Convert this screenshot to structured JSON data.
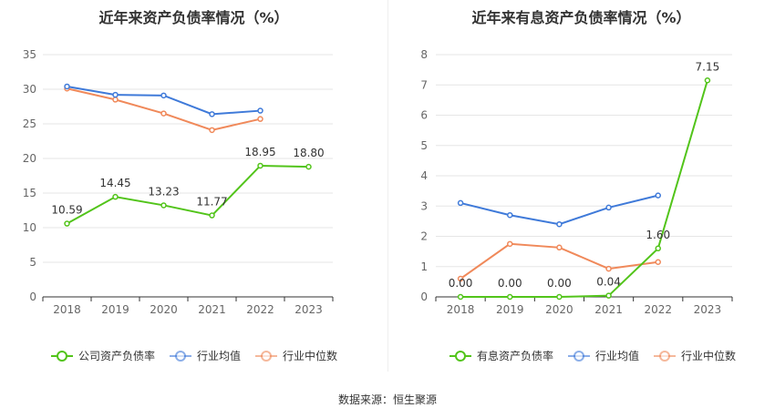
{
  "source": "数据来源：恒生聚源",
  "chart_data": [
    {
      "type": "line",
      "title": "近年来资产负债率情况（%）",
      "categories": [
        "2018",
        "2019",
        "2020",
        "2021",
        "2022",
        "2023"
      ],
      "ylim": [
        0,
        35
      ],
      "yticks": [
        0,
        5,
        10,
        15,
        20,
        25,
        30,
        35
      ],
      "grid": true,
      "legend_position": "bottom",
      "series": [
        {
          "name": "公司资产负债率",
          "color": "#52c41a",
          "labels": true,
          "values": [
            10.59,
            14.45,
            13.23,
            11.77,
            18.95,
            18.8
          ]
        },
        {
          "name": "行业均值",
          "color": "#3f7ad9",
          "labels": false,
          "values": [
            30.4,
            29.2,
            29.1,
            26.4,
            26.9,
            null
          ]
        },
        {
          "name": "行业中位数",
          "color": "#f0895a",
          "labels": false,
          "values": [
            30.1,
            28.5,
            26.5,
            24.1,
            25.7,
            null
          ]
        }
      ]
    },
    {
      "type": "line",
      "title": "近年来有息资产负债率情况（%）",
      "categories": [
        "2018",
        "2019",
        "2020",
        "2021",
        "2022",
        "2023"
      ],
      "ylim": [
        0,
        8
      ],
      "yticks": [
        0,
        1,
        2,
        3,
        4,
        5,
        6,
        7,
        8
      ],
      "grid": true,
      "legend_position": "bottom",
      "series": [
        {
          "name": "有息资产负债率",
          "color": "#52c41a",
          "labels": true,
          "values": [
            0.0,
            0.0,
            0.0,
            0.04,
            1.6,
            7.15
          ]
        },
        {
          "name": "行业均值",
          "color": "#3f7ad9",
          "labels": false,
          "values": [
            3.1,
            2.7,
            2.4,
            2.95,
            3.35,
            null
          ]
        },
        {
          "name": "行业中位数",
          "color": "#f0895a",
          "labels": false,
          "values": [
            0.6,
            1.75,
            1.63,
            0.93,
            1.15,
            null
          ]
        }
      ]
    }
  ]
}
